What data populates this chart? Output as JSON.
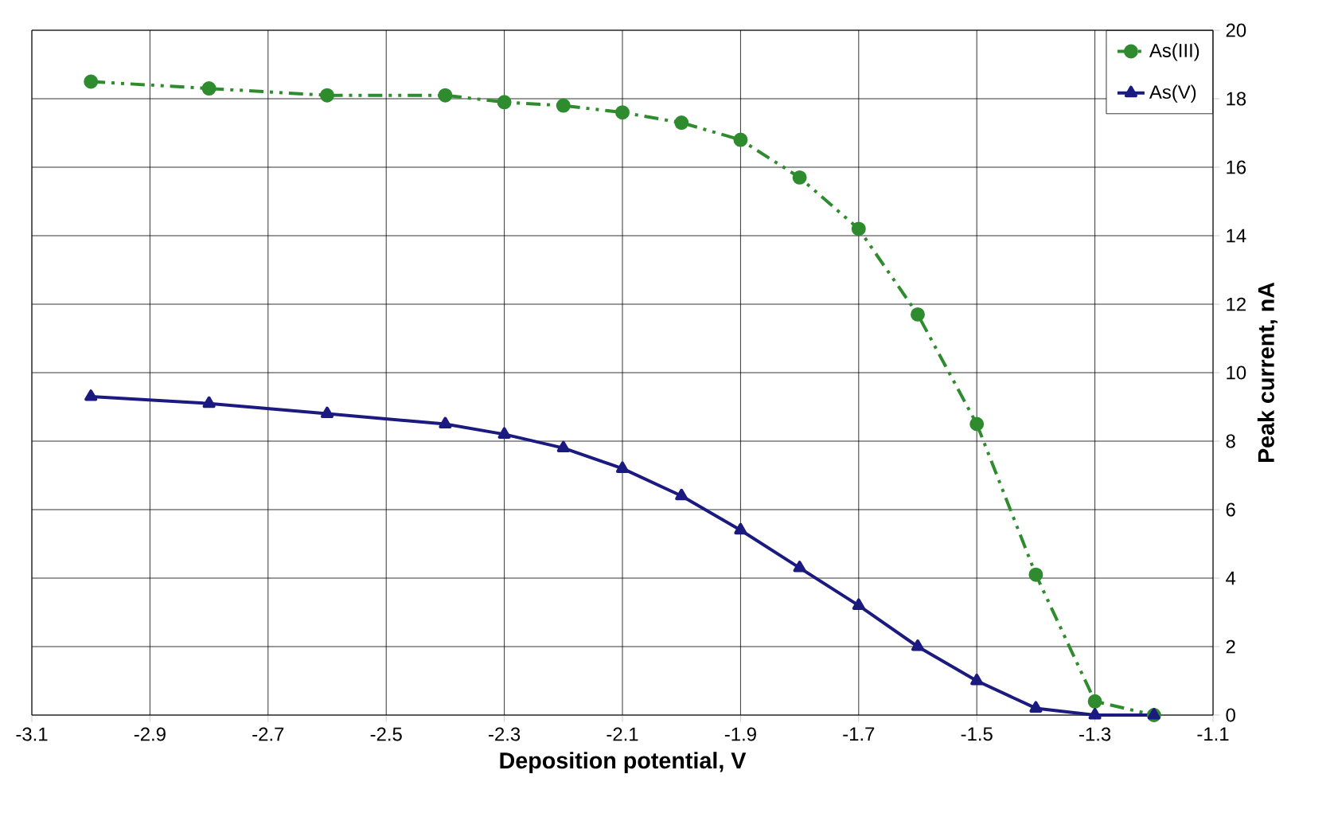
{
  "chart_data": {
    "type": "line",
    "xlabel": "Deposition potential, V",
    "ylabel": "Peak current, nA",
    "x": [
      -3.0,
      -2.8,
      -2.6,
      -2.4,
      -2.3,
      -2.2,
      -2.1,
      -2.0,
      -1.9,
      -1.8,
      -1.7,
      -1.6,
      -1.5,
      -1.4,
      -1.3,
      -1.2
    ],
    "series": [
      {
        "name": "As(III)",
        "color": "#2e8b2e",
        "marker": "circle",
        "line_style": "dashed",
        "values": [
          18.5,
          18.3,
          18.1,
          18.1,
          17.9,
          17.8,
          17.6,
          17.3,
          16.8,
          15.7,
          14.2,
          11.7,
          8.5,
          4.1,
          0.4,
          0.0
        ]
      },
      {
        "name": "As(V)",
        "color": "#1a1a80",
        "marker": "triangle",
        "line_style": "solid",
        "values": [
          9.3,
          9.1,
          8.8,
          8.5,
          8.2,
          7.8,
          7.2,
          6.4,
          5.4,
          4.3,
          3.2,
          2.0,
          1.0,
          0.2,
          0.0,
          0.0
        ]
      }
    ],
    "xlim": [
      -3.1,
      -1.1
    ],
    "ylim": [
      0,
      20
    ],
    "xticks": [
      -3.1,
      -2.9,
      -2.7,
      -2.5,
      -2.3,
      -2.1,
      -1.9,
      -1.7,
      -1.5,
      -1.3,
      -1.1
    ],
    "yticks": [
      0,
      2,
      4,
      6,
      8,
      10,
      12,
      14,
      16,
      18,
      20
    ],
    "grid": true,
    "legend": "top right"
  }
}
